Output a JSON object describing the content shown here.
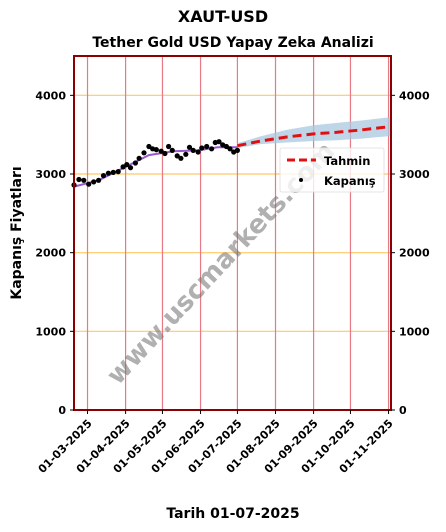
{
  "suptitle": "XAUT-USD",
  "title": "Tether Gold USD Yapay Zeka Analizi",
  "footer": "Tarih 01-07-2025",
  "watermark": "www.uscmarkets.com",
  "colors": {
    "frame": "#8b0000",
    "vgrid": "#e87a86",
    "hgrid": "#ffc866",
    "forecast": "#e01010",
    "band": "#a8c8e0",
    "fit": "#9b59d0",
    "points": "#000000"
  },
  "chart_data": {
    "type": "line",
    "ylabel": "Kapanış Fiyatları",
    "ylim": [
      0,
      4500
    ],
    "yticks": [
      0,
      1000,
      2000,
      3000,
      4000
    ],
    "xlim": [
      "2025-02-18",
      "2025-11-03"
    ],
    "xticks": [
      "01-03-2025",
      "01-04-2025",
      "01-05-2025",
      "01-06-2025",
      "01-07-2025",
      "01-08-2025",
      "01-09-2025",
      "01-10-2025",
      "01-11-2025"
    ],
    "grid": true,
    "legend_position": "right",
    "series": [
      {
        "name": "Kapanış",
        "style": "points",
        "points": [
          [
            "2025-02-18",
            2860
          ],
          [
            "2025-02-22",
            2930
          ],
          [
            "2025-02-26",
            2920
          ],
          [
            "2025-03-02",
            2870
          ],
          [
            "2025-03-06",
            2900
          ],
          [
            "2025-03-10",
            2920
          ],
          [
            "2025-03-14",
            2980
          ],
          [
            "2025-03-18",
            3010
          ],
          [
            "2025-03-22",
            3020
          ],
          [
            "2025-03-26",
            3030
          ],
          [
            "2025-03-30",
            3090
          ],
          [
            "2025-04-02",
            3120
          ],
          [
            "2025-04-05",
            3080
          ],
          [
            "2025-04-09",
            3140
          ],
          [
            "2025-04-12",
            3200
          ],
          [
            "2025-04-16",
            3270
          ],
          [
            "2025-04-20",
            3350
          ],
          [
            "2025-04-23",
            3320
          ],
          [
            "2025-04-26",
            3310
          ],
          [
            "2025-04-30",
            3290
          ],
          [
            "2025-05-03",
            3260
          ],
          [
            "2025-05-06",
            3350
          ],
          [
            "2025-05-09",
            3300
          ],
          [
            "2025-05-13",
            3230
          ],
          [
            "2025-05-16",
            3200
          ],
          [
            "2025-05-20",
            3250
          ],
          [
            "2025-05-23",
            3340
          ],
          [
            "2025-05-26",
            3300
          ],
          [
            "2025-05-30",
            3280
          ],
          [
            "2025-06-02",
            3330
          ],
          [
            "2025-06-06",
            3350
          ],
          [
            "2025-06-10",
            3320
          ],
          [
            "2025-06-13",
            3400
          ],
          [
            "2025-06-16",
            3410
          ],
          [
            "2025-06-19",
            3370
          ],
          [
            "2025-06-22",
            3350
          ],
          [
            "2025-06-25",
            3320
          ],
          [
            "2025-06-28",
            3280
          ],
          [
            "2025-07-01",
            3300
          ]
        ]
      },
      {
        "name": "",
        "style": "fit-line",
        "points": [
          [
            "2025-02-18",
            2840
          ],
          [
            "2025-03-10",
            2920
          ],
          [
            "2025-04-01",
            3090
          ],
          [
            "2025-04-20",
            3240
          ],
          [
            "2025-05-10",
            3290
          ],
          [
            "2025-05-30",
            3300
          ],
          [
            "2025-06-15",
            3340
          ],
          [
            "2025-07-01",
            3340
          ]
        ]
      },
      {
        "name": "Tahmin",
        "style": "dashed",
        "points": [
          [
            "2025-07-01",
            3360
          ],
          [
            "2025-07-20",
            3420
          ],
          [
            "2025-08-10",
            3470
          ],
          [
            "2025-09-01",
            3510
          ],
          [
            "2025-09-20",
            3530
          ],
          [
            "2025-10-10",
            3560
          ],
          [
            "2025-11-01",
            3600
          ],
          [
            "2025-11-03",
            3600
          ]
        ],
        "band_upper": [
          3390,
          3480,
          3560,
          3620,
          3650,
          3680,
          3720,
          3720
        ],
        "band_lower": [
          3330,
          3380,
          3400,
          3420,
          3430,
          3450,
          3480,
          3480
        ]
      }
    ]
  }
}
